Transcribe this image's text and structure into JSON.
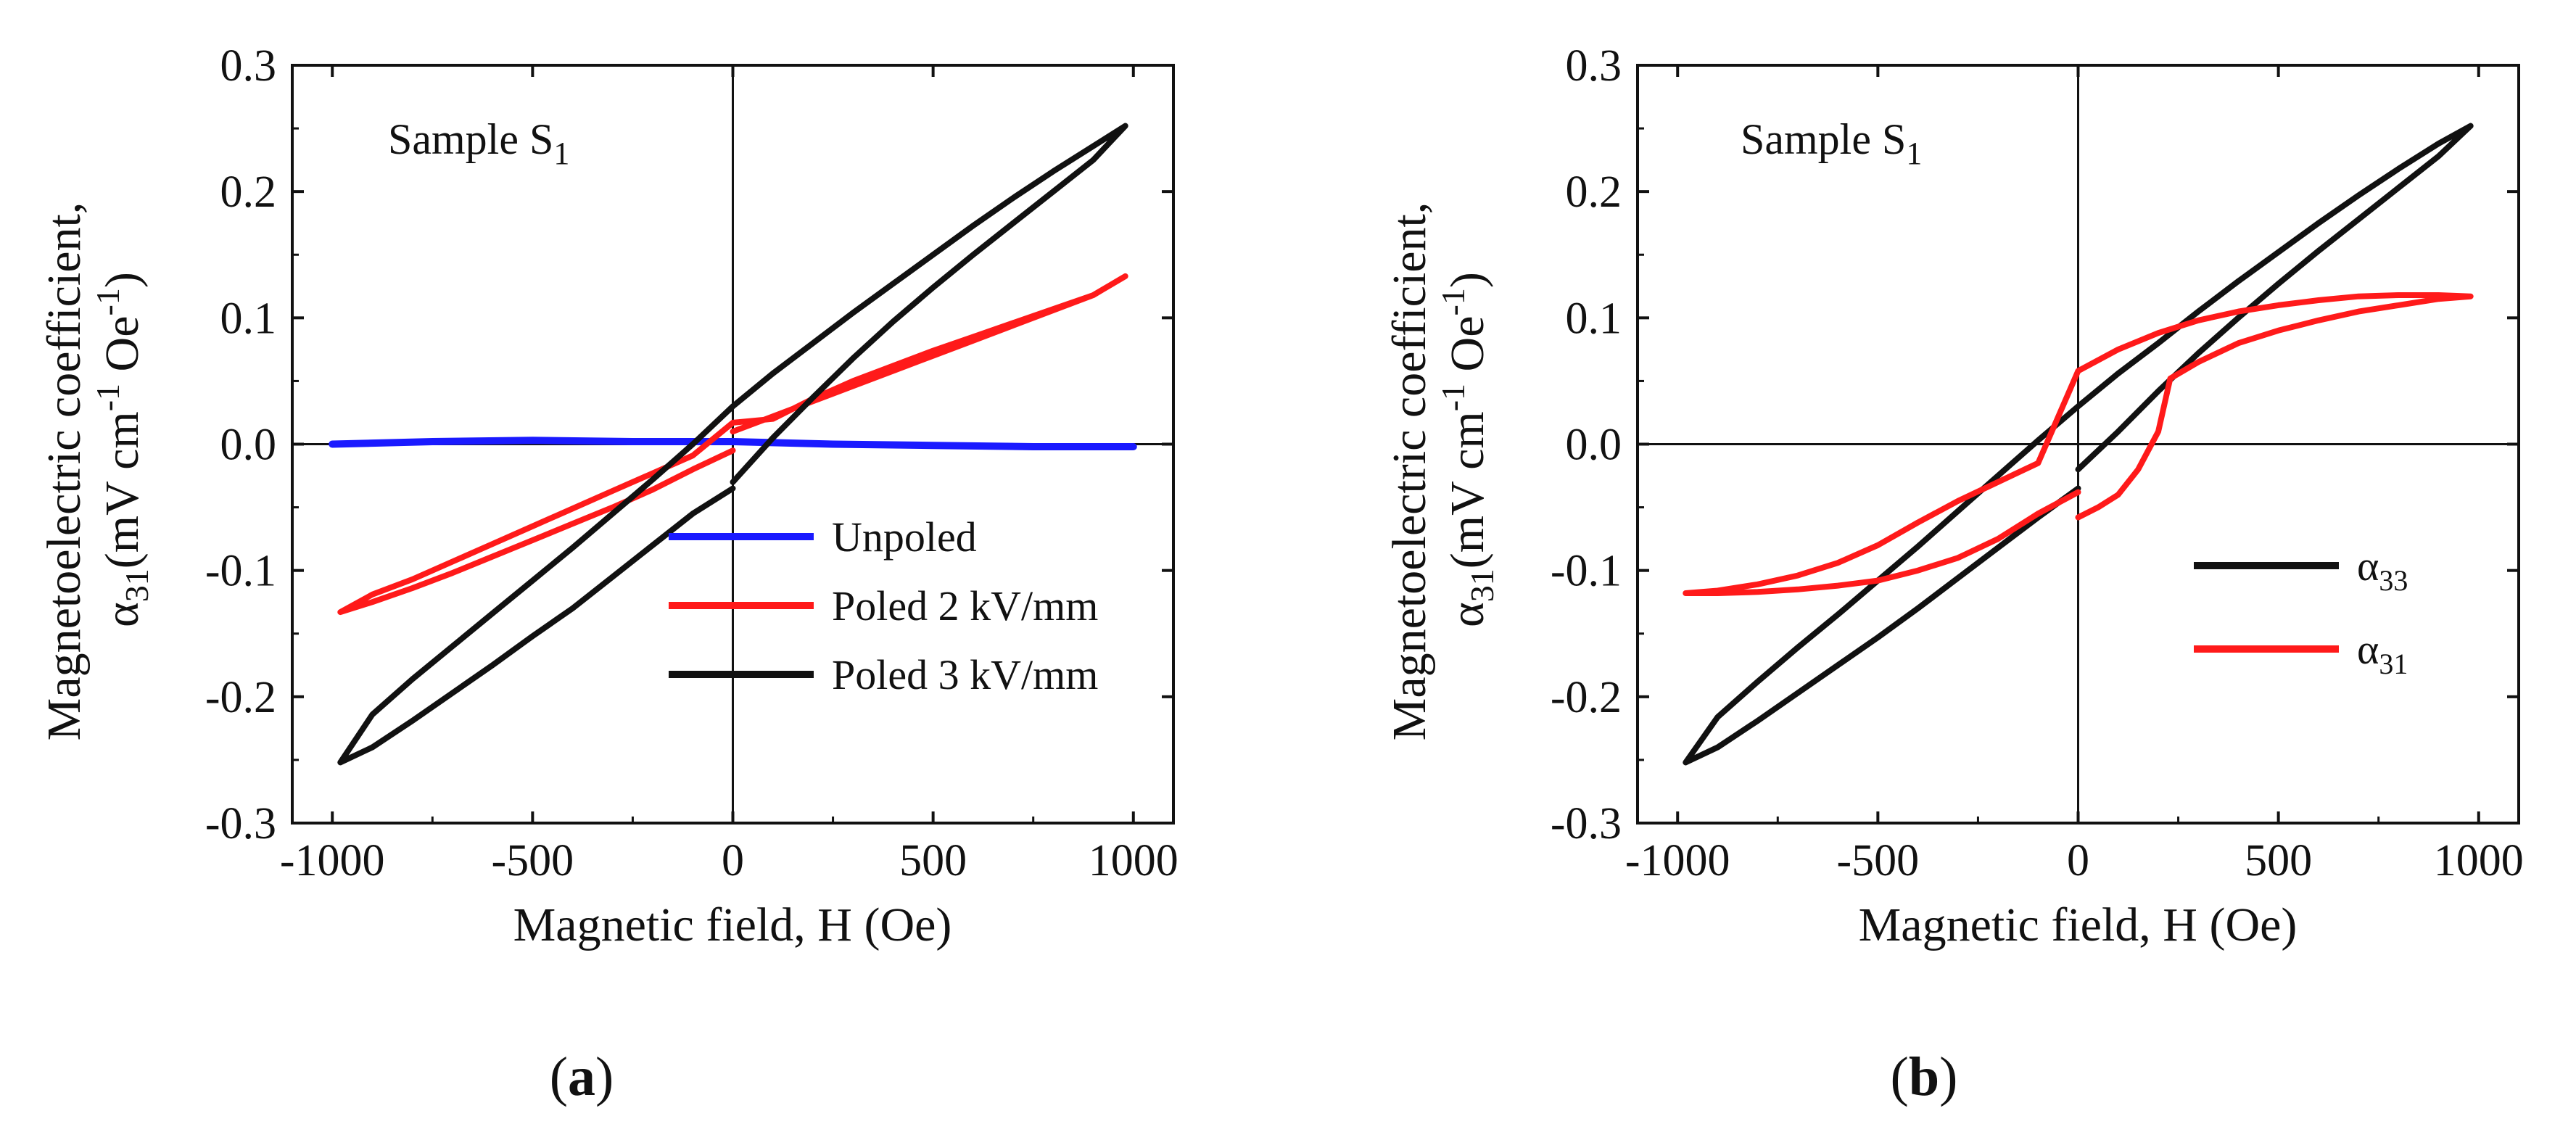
{
  "chart_data": [
    {
      "type": "line",
      "panel_label": "a",
      "annotation": {
        "text": "Sample S",
        "subscript": "1"
      },
      "xlabel": "Magnetic field, H (Oe)",
      "ylabel": {
        "line1": "Magnetoelectric coefficient,",
        "line2_symbol": "α",
        "line2_sub": "31",
        "line2_text": "(mV cm",
        "line2_sup1": "-1",
        "line2_text2": " Oe",
        "line2_sup2": "-1",
        "line2_end": ")"
      },
      "xlim": [
        -1100,
        1100
      ],
      "ylim": [
        -0.3,
        0.3
      ],
      "xticks": [
        -1000,
        -500,
        0,
        500,
        1000
      ],
      "xticklabels": [
        "-1000",
        "-500",
        "0",
        "500",
        "1000"
      ],
      "yticks": [
        -0.3,
        -0.2,
        -0.1,
        0.0,
        0.1,
        0.2,
        0.3
      ],
      "yticklabels": [
        "-0.3",
        "-0.2",
        "-0.1",
        "0.0",
        "0.1",
        "0.2",
        "0.3"
      ],
      "legend_position": "lower-right",
      "series": [
        {
          "name": "Unpoled",
          "color": "#1a1aff",
          "width": 10,
          "x": [
            -1000,
            -750,
            -500,
            -250,
            0,
            250,
            500,
            750,
            1000
          ],
          "y": [
            0.0,
            0.002,
            0.003,
            0.002,
            0.002,
            0.0,
            -0.001,
            -0.002,
            -0.002
          ]
        },
        {
          "name": "Poled 2 kV/mm",
          "color": "#ff1a1a",
          "width": 8,
          "x": [
            0,
            100,
            200,
            300,
            400,
            500,
            600,
            700,
            800,
            900,
            980,
            900,
            800,
            700,
            600,
            500,
            400,
            300,
            200,
            100,
            0,
            -100,
            -200,
            -300,
            -400,
            -500,
            -600,
            -700,
            -800,
            -900,
            -980,
            -900,
            -800,
            -700,
            -600,
            -500,
            -400,
            -300,
            -200,
            -100,
            0
          ],
          "y": [
            0.01,
            0.022,
            0.034,
            0.046,
            0.058,
            0.07,
            0.082,
            0.094,
            0.106,
            0.118,
            0.133,
            0.118,
            0.107,
            0.096,
            0.085,
            0.074,
            0.062,
            0.05,
            0.036,
            0.02,
            0.017,
            -0.009,
            -0.023,
            -0.037,
            -0.051,
            -0.065,
            -0.079,
            -0.093,
            -0.107,
            -0.119,
            -0.133,
            -0.125,
            -0.114,
            -0.102,
            -0.089,
            -0.076,
            -0.063,
            -0.05,
            -0.036,
            -0.02,
            -0.005
          ]
        },
        {
          "name": "Poled 3 kV/mm",
          "color": "#111111",
          "width": 8,
          "x": [
            0,
            100,
            200,
            300,
            400,
            500,
            600,
            700,
            800,
            900,
            980,
            900,
            800,
            700,
            600,
            500,
            400,
            300,
            200,
            100,
            0,
            -100,
            -200,
            -300,
            -400,
            -500,
            -600,
            -700,
            -800,
            -900,
            -980,
            -900,
            -800,
            -700,
            -600,
            -500,
            -400,
            -300,
            -200,
            -100,
            0
          ],
          "y": [
            -0.03,
            0.005,
            0.037,
            0.068,
            0.097,
            0.124,
            0.15,
            0.175,
            0.2,
            0.225,
            0.252,
            0.236,
            0.216,
            0.195,
            0.173,
            0.15,
            0.127,
            0.104,
            0.08,
            0.056,
            0.03,
            0.0,
            -0.028,
            -0.055,
            -0.082,
            -0.108,
            -0.134,
            -0.16,
            -0.186,
            -0.214,
            -0.252,
            -0.24,
            -0.219,
            -0.197,
            -0.175,
            -0.152,
            -0.13,
            -0.105,
            -0.08,
            -0.055,
            -0.035
          ]
        }
      ]
    },
    {
      "type": "line",
      "panel_label": "b",
      "annotation": {
        "text": "Sample S",
        "subscript": "1"
      },
      "xlabel": "Magnetic field, H (Oe)",
      "ylabel": {
        "line1": "Magnetoelectric coefficient,",
        "line2_symbol": "α",
        "line2_sub": "31",
        "line2_text": "(mV cm",
        "line2_sup1": "-1",
        "line2_text2": " Oe",
        "line2_sup2": "-1",
        "line2_end": ")"
      },
      "xlim": [
        -1100,
        1100
      ],
      "ylim": [
        -0.3,
        0.3
      ],
      "xticks": [
        -1000,
        -500,
        0,
        500,
        1000
      ],
      "xticklabels": [
        "-1000",
        "-500",
        "0",
        "500",
        "1000"
      ],
      "yticks": [
        -0.3,
        -0.2,
        -0.1,
        0.0,
        0.1,
        0.2,
        0.3
      ],
      "yticklabels": [
        "-0.3",
        "-0.2",
        "-0.1",
        "0.0",
        "0.1",
        "0.2",
        "0.3"
      ],
      "legend_position": "lower-right",
      "series": [
        {
          "name": "α",
          "name_sub": "33",
          "label_color": "#111111",
          "color": "#111111",
          "width": 8,
          "x": [
            0,
            100,
            200,
            300,
            400,
            500,
            600,
            700,
            800,
            900,
            980,
            900,
            800,
            700,
            600,
            500,
            400,
            300,
            200,
            100,
            0,
            -100,
            -200,
            -300,
            -400,
            -500,
            -600,
            -700,
            -800,
            -900,
            -980,
            -900,
            -800,
            -700,
            -600,
            -500,
            -400,
            -300,
            -200,
            -100,
            0
          ],
          "y": [
            -0.02,
            0.01,
            0.042,
            0.072,
            0.1,
            0.127,
            0.153,
            0.178,
            0.203,
            0.228,
            0.252,
            0.238,
            0.218,
            0.197,
            0.175,
            0.152,
            0.129,
            0.105,
            0.08,
            0.056,
            0.03,
            0.003,
            -0.025,
            -0.053,
            -0.081,
            -0.108,
            -0.135,
            -0.161,
            -0.188,
            -0.216,
            -0.252,
            -0.24,
            -0.219,
            -0.197,
            -0.175,
            -0.153,
            -0.13,
            -0.106,
            -0.082,
            -0.058,
            -0.035
          ]
        },
        {
          "name": "α",
          "name_sub": "31",
          "label_color": "#ff1a1a",
          "color": "#ff1a1a",
          "width": 8,
          "x": [
            0,
            50,
            100,
            150,
            200,
            230,
            300,
            400,
            500,
            600,
            700,
            800,
            900,
            980,
            900,
            800,
            700,
            600,
            500,
            400,
            300,
            200,
            100,
            0,
            -100,
            -200,
            -300,
            -400,
            -500,
            -600,
            -700,
            -800,
            -900,
            -980,
            -900,
            -800,
            -700,
            -600,
            -500,
            -400,
            -300,
            -200,
            -100,
            0
          ],
          "y": [
            -0.058,
            -0.05,
            -0.04,
            -0.02,
            0.01,
            0.052,
            0.065,
            0.08,
            0.09,
            0.098,
            0.105,
            0.11,
            0.115,
            0.117,
            0.118,
            0.118,
            0.117,
            0.114,
            0.11,
            0.105,
            0.098,
            0.088,
            0.075,
            0.058,
            -0.015,
            -0.03,
            -0.045,
            -0.062,
            -0.08,
            -0.094,
            -0.104,
            -0.111,
            -0.116,
            -0.118,
            -0.118,
            -0.117,
            -0.115,
            -0.112,
            -0.108,
            -0.1,
            -0.09,
            -0.075,
            -0.055,
            -0.038
          ]
        }
      ]
    }
  ]
}
